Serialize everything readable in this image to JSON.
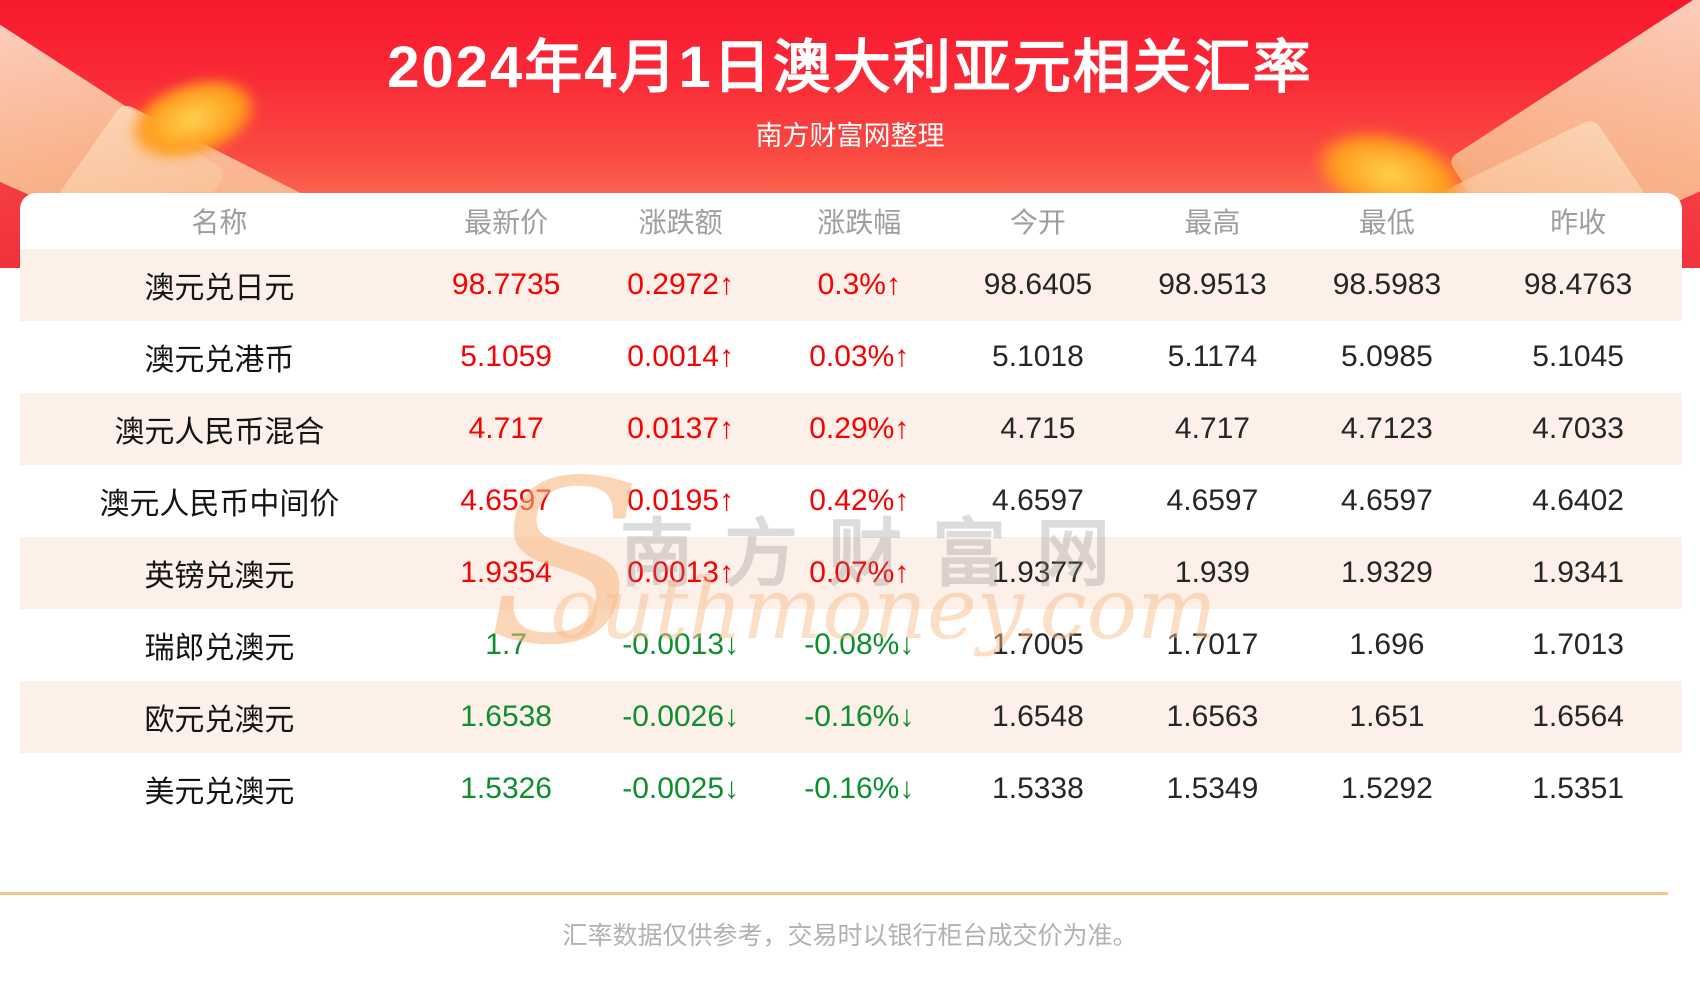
{
  "banner": {
    "title": "2024年4月1日澳大利亚元相关汇率",
    "subtitle": "南方财富网整理",
    "bg_top_color": "#f8182e",
    "bg_bottom_color": "#fc9e7a"
  },
  "chart_data": {
    "type": "table",
    "title": "2024年4月1日澳大利亚元相关汇率",
    "columns": [
      "名称",
      "最新价",
      "涨跌额",
      "涨跌幅",
      "今开",
      "最高",
      "最低",
      "昨收"
    ],
    "up_color": "#fa0000",
    "down_color": "#0b8f2f",
    "rows": [
      {
        "name": "澳元兑日元",
        "last": "98.7735",
        "change": "0.2972↑",
        "pct": "0.3%↑",
        "open": "98.6405",
        "high": "98.9513",
        "low": "98.5983",
        "prev": "98.4763",
        "direction": "up"
      },
      {
        "name": "澳元兑港币",
        "last": "5.1059",
        "change": "0.0014↑",
        "pct": "0.03%↑",
        "open": "5.1018",
        "high": "5.1174",
        "low": "5.0985",
        "prev": "5.1045",
        "direction": "up"
      },
      {
        "name": "澳元人民币混合",
        "last": "4.717",
        "change": "0.0137↑",
        "pct": "0.29%↑",
        "open": "4.715",
        "high": "4.717",
        "low": "4.7123",
        "prev": "4.7033",
        "direction": "up"
      },
      {
        "name": "澳元人民币中间价",
        "last": "4.6597",
        "change": "0.0195↑",
        "pct": "0.42%↑",
        "open": "4.6597",
        "high": "4.6597",
        "low": "4.6597",
        "prev": "4.6402",
        "direction": "up"
      },
      {
        "name": "英镑兑澳元",
        "last": "1.9354",
        "change": "0.0013↑",
        "pct": "0.07%↑",
        "open": "1.9377",
        "high": "1.939",
        "low": "1.9329",
        "prev": "1.9341",
        "direction": "up"
      },
      {
        "name": "瑞郎兑澳元",
        "last": "1.7",
        "change": "-0.0013↓",
        "pct": "-0.08%↓",
        "open": "1.7005",
        "high": "1.7017",
        "low": "1.696",
        "prev": "1.7013",
        "direction": "down"
      },
      {
        "name": "欧元兑澳元",
        "last": "1.6538",
        "change": "-0.0026↓",
        "pct": "-0.16%↓",
        "open": "1.6548",
        "high": "1.6563",
        "low": "1.651",
        "prev": "1.6564",
        "direction": "down"
      },
      {
        "name": "美元兑澳元",
        "last": "1.5326",
        "change": "-0.0025↓",
        "pct": "-0.16%↓",
        "open": "1.5338",
        "high": "1.5349",
        "low": "1.5292",
        "prev": "1.5351",
        "direction": "down"
      }
    ]
  },
  "watermark": {
    "s": "S",
    "cn": "南方财富网",
    "en": "outhmoney.com"
  },
  "footer": {
    "note": "汇率数据仅供参考，交易时以银行柜台成交价为准。"
  }
}
